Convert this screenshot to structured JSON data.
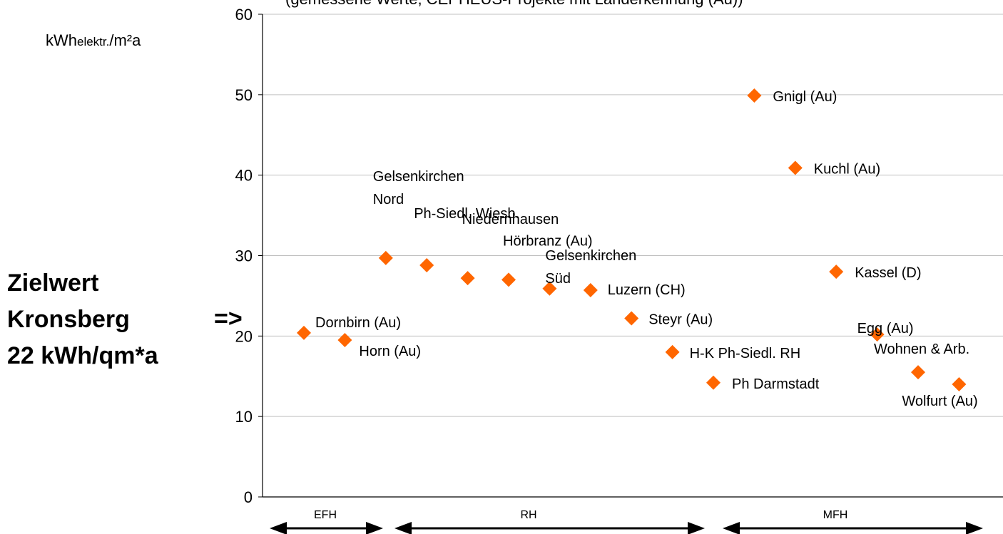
{
  "title": "(gemessene Werte, CEPHEUS-Projekte mit Länderkennung (Au))",
  "unit_label": {
    "main": "kWh",
    "sub": "elektr.",
    "rest": "/m²a"
  },
  "side_label": {
    "line1": "Zielwert",
    "line2": "Kronsberg",
    "line3": "22 kWh/qm*a"
  },
  "arrow_mark": "=>",
  "colors": {
    "marker": "#ff6600",
    "grid": "#c0c0c0",
    "axis": "#000000"
  },
  "chart_data": {
    "type": "scatter",
    "title": "(gemessene Werte, CEPHEUS-Projekte mit Länderkennung (Au))",
    "ylabel": "kWhelektr./m²a",
    "ylim": [
      0,
      60
    ],
    "yticks": [
      0,
      10,
      20,
      30,
      40,
      50,
      60
    ],
    "grid": true,
    "points": [
      {
        "x": 1,
        "y": 20.4,
        "label": [
          "Dornbirn (Au)"
        ]
      },
      {
        "x": 2,
        "y": 19.5,
        "label": [
          "Horn (Au)"
        ]
      },
      {
        "x": 3,
        "y": 29.7,
        "label": [
          "Gelsenkirchen",
          "Nord"
        ]
      },
      {
        "x": 4,
        "y": 28.8,
        "label": [
          "Ph-Siedl. Wiesb."
        ]
      },
      {
        "x": 5,
        "y": 27.2,
        "label": [
          "Niedernhausen"
        ]
      },
      {
        "x": 6,
        "y": 27.0,
        "label": [
          "Hörbranz (Au)"
        ]
      },
      {
        "x": 7,
        "y": 25.9,
        "label": [
          "Gelsenkirchen",
          "Süd"
        ]
      },
      {
        "x": 8,
        "y": 25.7,
        "label": [
          "Luzern (CH)"
        ]
      },
      {
        "x": 9,
        "y": 22.2,
        "label": [
          "Steyr (Au)"
        ]
      },
      {
        "x": 10,
        "y": 18.0,
        "label": [
          "H-K Ph-Siedl. RH"
        ]
      },
      {
        "x": 11,
        "y": 14.2,
        "label": [
          "Ph Darmstadt"
        ]
      },
      {
        "x": 12,
        "y": 49.9,
        "label": [
          "Gnigl (Au)"
        ]
      },
      {
        "x": 13,
        "y": 40.9,
        "label": [
          "Kuchl (Au)"
        ]
      },
      {
        "x": 14,
        "y": 28.0,
        "label": [
          "Kassel (D)"
        ]
      },
      {
        "x": 15,
        "y": 20.2,
        "label": [
          "Egg (Au)"
        ]
      },
      {
        "x": 16,
        "y": 15.5,
        "label": [
          "Wohnen & Arb."
        ]
      },
      {
        "x": 17,
        "y": 14.0,
        "label": [
          "Wolfurt (Au)"
        ]
      }
    ],
    "groups": [
      {
        "label": "EFH",
        "from": 1,
        "to": 2
      },
      {
        "label": "RH",
        "from": 3,
        "to": 11
      },
      {
        "label": "MFH",
        "from": 12,
        "to": 17
      }
    ]
  }
}
